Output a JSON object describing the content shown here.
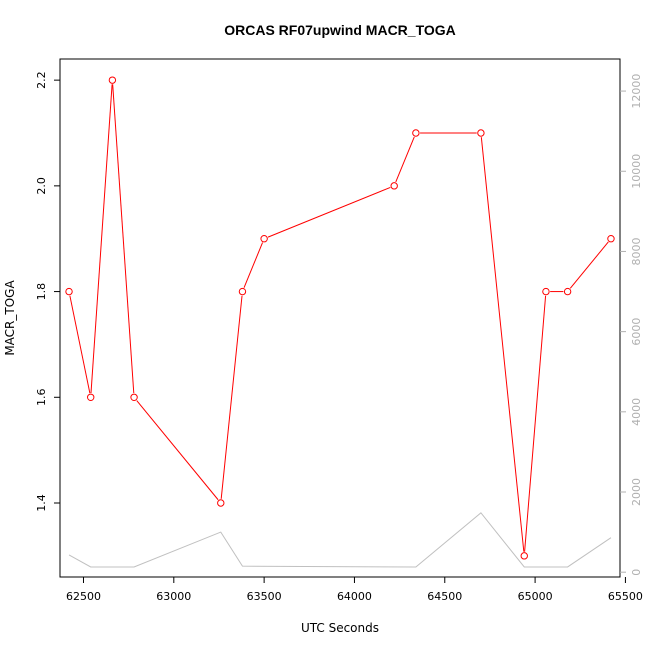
{
  "chart_data": {
    "type": "line",
    "title": "ORCAS RF07upwind MACR_TOGA",
    "xlabel": "UTC Seconds",
    "ylabel": "MACR_TOGA",
    "xlim": [
      62370,
      65470
    ],
    "ylim": [
      1.26,
      2.24
    ],
    "y2lim": [
      -120,
      12800
    ],
    "x_ticks": [
      62500,
      63000,
      63500,
      64000,
      64500,
      65000,
      65500
    ],
    "y_ticks": [
      1.4,
      1.6,
      1.8,
      2.0,
      2.2
    ],
    "y2_ticks": [
      0,
      2000,
      4000,
      6000,
      8000,
      10000,
      12000
    ],
    "grid": false,
    "series": [
      {
        "axis": "left",
        "color": "#ff0000",
        "markers": "open-circle",
        "x": [
          62420,
          62540,
          62660,
          62780,
          63260,
          63380,
          63500,
          64220,
          64340,
          64700,
          64940,
          65060,
          65180,
          65420
        ],
        "y": [
          1.8,
          1.6,
          2.2,
          1.6,
          1.4,
          1.8,
          1.9,
          2.0,
          2.1,
          2.1,
          1.3,
          1.8,
          1.8,
          1.9
        ]
      },
      {
        "axis": "right",
        "color": "#c0c0c0",
        "markers": "none",
        "x": [
          62420,
          62540,
          62780,
          63260,
          63380,
          64340,
          64700,
          64940,
          65180,
          65420
        ],
        "y": [
          430,
          130,
          130,
          1000,
          150,
          130,
          1480,
          130,
          130,
          860
        ]
      }
    ]
  }
}
